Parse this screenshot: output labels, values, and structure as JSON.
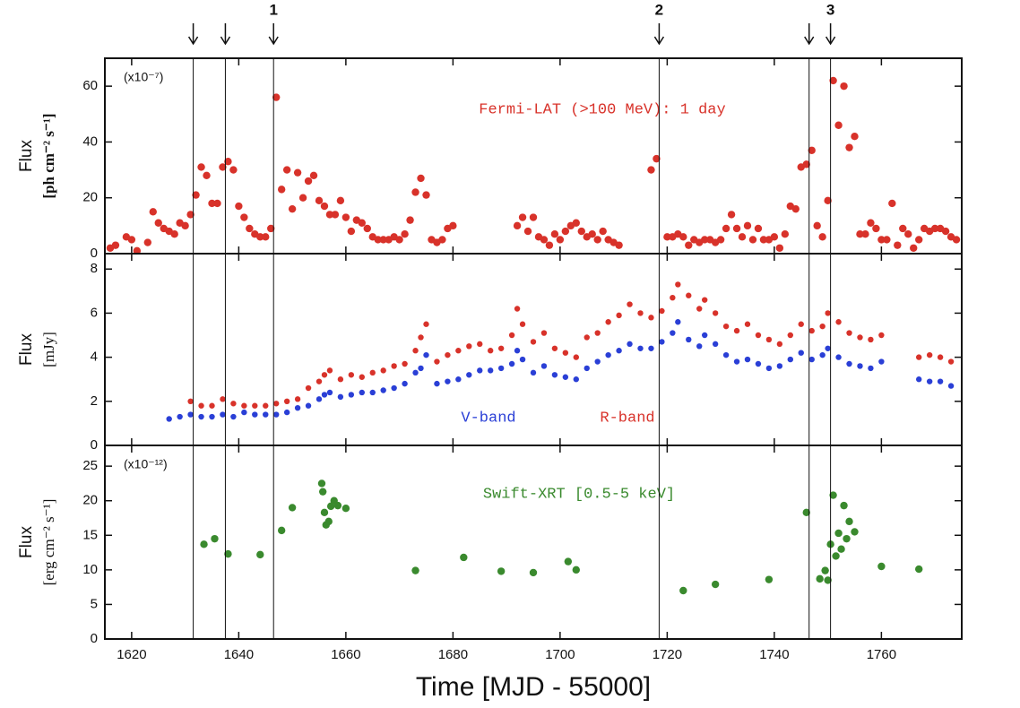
{
  "markers": {
    "x": [
      1631.5,
      1637.5,
      1646.5,
      1718.5,
      1746.5,
      1750.5
    ],
    "labels": [
      null,
      null,
      "1",
      "2",
      null,
      "3"
    ]
  },
  "chart_data": [
    {
      "type": "scatter",
      "y_label": "Flux",
      "y_label_unit": "[ph cm⁻² s⁻¹]",
      "scale_label": "(x10⁻⁷)",
      "xlim": [
        1615,
        1775
      ],
      "xticks": [
        1620,
        1640,
        1660,
        1680,
        1700,
        1720,
        1740,
        1760
      ],
      "ylim": [
        0,
        70
      ],
      "yticks": [
        0,
        20,
        40,
        60
      ],
      "series": [
        {
          "name": "Fermi-LAT (>100 MeV): 1 day",
          "color": "#d8322a",
          "x": [
            1616,
            1617,
            1619,
            1620,
            1621,
            1623,
            1624,
            1625,
            1626,
            1627,
            1628,
            1629,
            1630,
            1631,
            1632,
            1633,
            1634,
            1635,
            1636,
            1637,
            1638,
            1639,
            1640,
            1641,
            1642,
            1643,
            1644,
            1645,
            1646,
            1647,
            1648,
            1649,
            1650,
            1651,
            1652,
            1653,
            1654,
            1655,
            1656,
            1657,
            1658,
            1659,
            1660,
            1661,
            1662,
            1663,
            1664,
            1665,
            1666,
            1667,
            1668,
            1669,
            1670,
            1671,
            1672,
            1673,
            1674,
            1675,
            1676,
            1677,
            1678,
            1679,
            1680,
            1692,
            1693,
            1694,
            1695,
            1696,
            1697,
            1698,
            1699,
            1700,
            1701,
            1702,
            1703,
            1704,
            1705,
            1706,
            1707,
            1708,
            1709,
            1710,
            1711,
            1717,
            1718,
            1720,
            1721,
            1722,
            1723,
            1724,
            1725,
            1726,
            1727,
            1728,
            1729,
            1730,
            1731,
            1732,
            1733,
            1734,
            1735,
            1736,
            1737,
            1738,
            1739,
            1740,
            1741,
            1742,
            1743,
            1744,
            1745,
            1746,
            1747,
            1748,
            1749,
            1750,
            1751,
            1752,
            1753,
            1754,
            1755,
            1756,
            1757,
            1758,
            1759,
            1760,
            1761,
            1762,
            1763,
            1764,
            1765,
            1766,
            1767,
            1768,
            1769,
            1770,
            1771,
            1772,
            1773,
            1774
          ],
          "values": [
            2,
            3,
            6,
            5,
            1,
            4,
            15,
            11,
            9,
            8,
            7,
            11,
            10,
            14,
            21,
            31,
            28,
            18,
            18,
            31,
            33,
            30,
            17,
            13,
            9,
            7,
            6,
            6,
            9,
            56,
            23,
            30,
            16,
            29,
            20,
            26,
            28,
            19,
            17,
            14,
            14,
            19,
            13,
            8,
            12,
            11,
            9,
            6,
            5,
            5,
            5,
            6,
            5,
            7,
            12,
            22,
            27,
            21,
            5,
            4,
            5,
            9,
            10,
            10,
            13,
            8,
            13,
            6,
            5,
            3,
            7,
            5,
            8,
            10,
            11,
            8,
            6,
            7,
            5,
            8,
            5,
            4,
            3,
            30,
            34,
            6,
            6,
            7,
            6,
            3,
            5,
            4,
            5,
            5,
            4,
            5,
            9,
            14,
            9,
            6,
            10,
            5,
            9,
            5,
            5,
            6,
            2,
            7,
            17,
            16,
            31,
            32,
            37,
            10,
            6,
            19,
            62,
            46,
            60,
            38,
            42,
            7,
            7,
            11,
            9,
            5,
            5,
            18,
            3,
            9,
            7,
            2,
            5,
            9,
            8,
            9,
            9,
            8,
            6,
            5
          ]
        }
      ]
    },
    {
      "type": "scatter",
      "y_label": "Flux",
      "y_label_unit": "[mJy]",
      "xlim": [
        1615,
        1775
      ],
      "xticks": [
        1620,
        1640,
        1660,
        1680,
        1700,
        1720,
        1740,
        1760
      ],
      "ylim": [
        0,
        8.7
      ],
      "yticks": [
        0,
        2,
        4,
        6,
        8
      ],
      "series": [
        {
          "name": "R-band",
          "color": "#d8322a",
          "x": [
            1631,
            1633,
            1635,
            1637,
            1639,
            1641,
            1643,
            1645,
            1647,
            1649,
            1651,
            1653,
            1655,
            1656,
            1657,
            1659,
            1661,
            1663,
            1665,
            1667,
            1669,
            1671,
            1673,
            1674,
            1675,
            1677,
            1679,
            1681,
            1683,
            1685,
            1687,
            1689,
            1691,
            1692,
            1693,
            1695,
            1697,
            1699,
            1701,
            1703,
            1705,
            1707,
            1709,
            1711,
            1713,
            1715,
            1717,
            1719,
            1721,
            1722,
            1724,
            1726,
            1727,
            1729,
            1731,
            1733,
            1735,
            1737,
            1739,
            1741,
            1743,
            1745,
            1747,
            1749,
            1750,
            1752,
            1754,
            1756,
            1758,
            1760,
            1767,
            1769,
            1771,
            1773
          ],
          "values": [
            2.0,
            1.8,
            1.8,
            2.1,
            1.9,
            1.8,
            1.8,
            1.8,
            1.9,
            2.0,
            2.1,
            2.6,
            2.9,
            3.2,
            3.4,
            3.0,
            3.2,
            3.1,
            3.3,
            3.4,
            3.6,
            3.7,
            4.3,
            4.9,
            5.5,
            3.8,
            4.1,
            4.3,
            4.5,
            4.6,
            4.3,
            4.4,
            5.0,
            6.2,
            5.5,
            4.7,
            5.1,
            4.4,
            4.2,
            4.0,
            4.9,
            5.1,
            5.6,
            5.9,
            6.4,
            6.0,
            5.8,
            6.1,
            6.7,
            7.3,
            6.8,
            6.2,
            6.6,
            6.0,
            5.4,
            5.2,
            5.5,
            5.0,
            4.8,
            4.6,
            5.0,
            5.5,
            5.2,
            5.4,
            6.0,
            5.6,
            5.1,
            4.9,
            4.8,
            5.0,
            4.0,
            4.1,
            4.0,
            3.8
          ]
        },
        {
          "name": "V-band",
          "color": "#2a3fd6",
          "x": [
            1627,
            1629,
            1631,
            1633,
            1635,
            1637,
            1639,
            1641,
            1643,
            1645,
            1647,
            1649,
            1651,
            1653,
            1655,
            1656,
            1657,
            1659,
            1661,
            1663,
            1665,
            1667,
            1669,
            1671,
            1673,
            1674,
            1675,
            1677,
            1679,
            1681,
            1683,
            1685,
            1687,
            1689,
            1691,
            1692,
            1693,
            1695,
            1697,
            1699,
            1701,
            1703,
            1705,
            1707,
            1709,
            1711,
            1713,
            1715,
            1717,
            1719,
            1721,
            1722,
            1724,
            1726,
            1727,
            1729,
            1731,
            1733,
            1735,
            1737,
            1739,
            1741,
            1743,
            1745,
            1747,
            1749,
            1750,
            1752,
            1754,
            1756,
            1758,
            1760,
            1767,
            1769,
            1771,
            1773
          ],
          "values": [
            1.2,
            1.3,
            1.4,
            1.3,
            1.3,
            1.4,
            1.3,
            1.5,
            1.4,
            1.4,
            1.4,
            1.5,
            1.7,
            1.8,
            2.1,
            2.3,
            2.4,
            2.2,
            2.3,
            2.4,
            2.4,
            2.5,
            2.6,
            2.8,
            3.3,
            3.5,
            4.1,
            2.8,
            2.9,
            3.0,
            3.2,
            3.4,
            3.4,
            3.5,
            3.7,
            4.3,
            3.9,
            3.3,
            3.6,
            3.2,
            3.1,
            3.0,
            3.5,
            3.8,
            4.1,
            4.3,
            4.6,
            4.4,
            4.4,
            4.7,
            5.1,
            5.6,
            4.8,
            4.5,
            5.0,
            4.6,
            4.1,
            3.8,
            3.9,
            3.7,
            3.5,
            3.6,
            3.9,
            4.2,
            3.9,
            4.1,
            4.4,
            4.0,
            3.7,
            3.6,
            3.5,
            3.8,
            3.0,
            2.9,
            2.9,
            2.7
          ]
        }
      ]
    },
    {
      "type": "scatter",
      "y_label": "Flux",
      "y_label_unit": "[erg cm⁻² s⁻¹]",
      "scale_label": "(x10⁻¹²)",
      "x_label": "Time [MJD - 55000]",
      "xlim": [
        1615,
        1775
      ],
      "xticks": [
        1620,
        1640,
        1660,
        1680,
        1700,
        1720,
        1740,
        1760
      ],
      "ylim": [
        0,
        28
      ],
      "yticks": [
        0,
        5,
        10,
        15,
        20,
        25
      ],
      "series": [
        {
          "name": "Swift-XRT [0.5-5 keV]",
          "color": "#3a8a2e",
          "x": [
            1633.5,
            1635.5,
            1638,
            1644,
            1648,
            1650,
            1655.5,
            1655.7,
            1656,
            1656.3,
            1656.8,
            1657.2,
            1657.8,
            1658.5,
            1660,
            1673,
            1682,
            1689,
            1695,
            1701.5,
            1703,
            1723,
            1729,
            1739,
            1746,
            1748.5,
            1749.5,
            1750,
            1750.5,
            1751,
            1751.5,
            1752,
            1752.5,
            1753,
            1753.5,
            1754,
            1755,
            1760,
            1767
          ],
          "values": [
            13.7,
            14.5,
            12.3,
            12.2,
            15.7,
            19.0,
            22.5,
            21.3,
            18.3,
            16.5,
            17.0,
            19.2,
            20.0,
            19.3,
            18.9,
            9.9,
            11.8,
            9.8,
            9.6,
            11.2,
            10.0,
            7.0,
            7.9,
            8.6,
            18.3,
            8.7,
            9.9,
            8.5,
            13.7,
            20.8,
            12.0,
            15.3,
            13.0,
            19.3,
            14.5,
            17.0,
            15.5,
            10.5,
            10.1
          ]
        }
      ]
    }
  ]
}
